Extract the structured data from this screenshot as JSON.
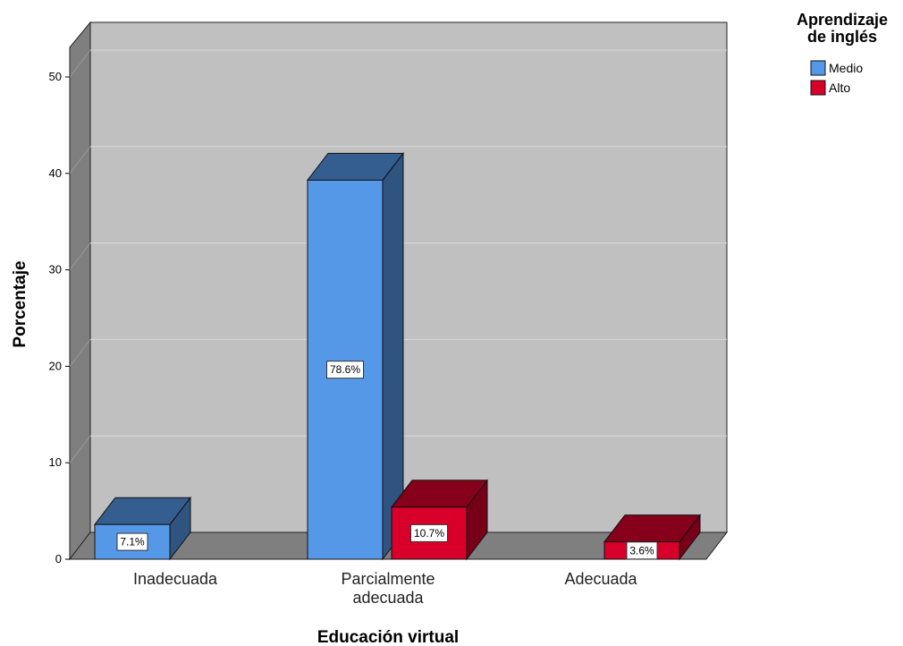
{
  "chart_data": {
    "type": "bar",
    "title": "",
    "xlabel": "Educación virtual",
    "ylabel": "Porcentaje",
    "ylim": [
      0,
      50
    ],
    "yticks": [
      0,
      10,
      20,
      30,
      40,
      50
    ],
    "categories": [
      "Inadecuada",
      "Parcialmente adecuada",
      "Adecuada"
    ],
    "category_label_lines": [
      [
        "Inadecuada"
      ],
      [
        "Parcialmente",
        "adecuada"
      ],
      [
        "Adecuada"
      ]
    ],
    "legend_title_lines": [
      "Aprendizaje",
      "de inglés"
    ],
    "legend_position": "top-right",
    "three_d": true,
    "grid": true,
    "series": [
      {
        "name": "Medio",
        "color": "#5698e8",
        "values": [
          3.6,
          39.3,
          null
        ],
        "labels": [
          "7.1%",
          "78.6%",
          ""
        ]
      },
      {
        "name": "Alto",
        "color": "#d8002b",
        "values": [
          null,
          5.4,
          1.8
        ],
        "labels": [
          "",
          "10.7%",
          "3.6%"
        ]
      }
    ]
  }
}
